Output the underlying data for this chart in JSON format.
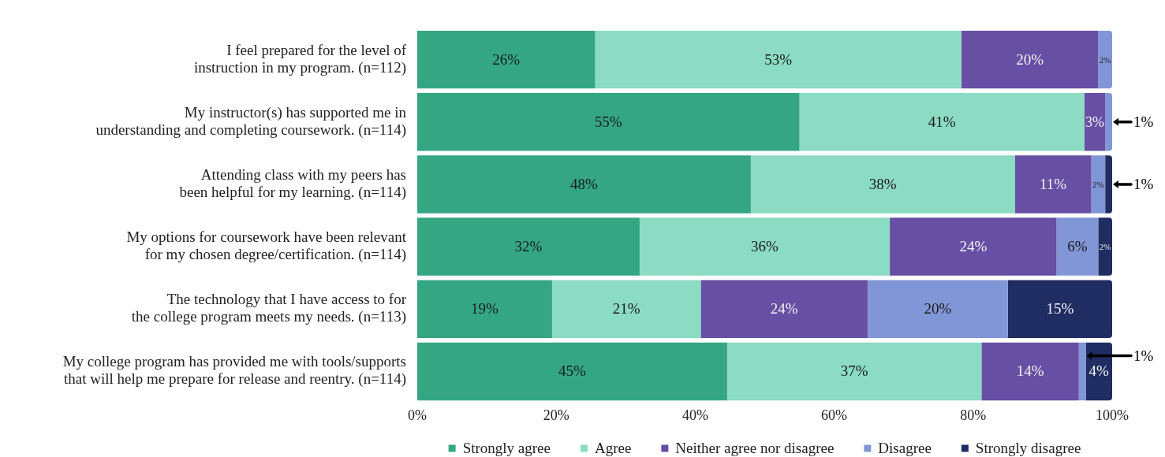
{
  "chart_data": {
    "type": "bar",
    "orientation": "horizontal",
    "stacked": true,
    "categories": [
      "I feel prepared for the level of\ninstruction in my program. (n=112)",
      "My instructor(s) has supported me in\nunderstanding and completing coursework. (n=114)",
      "Attending class with my peers has\nbeen helpful for my learning. (n=114)",
      "My options for coursework have been relevant\nfor my chosen degree/certification. (n=114)",
      "The technology that I have access to for\nthe college program meets my needs. (n=113)",
      "My college program has provided me with tools/supports\nthat will help me prepare for release and reentry. (n=114)"
    ],
    "series": [
      {
        "name": "Strongly agree",
        "color": "#34a782",
        "values": [
          25.6,
          55,
          48,
          32,
          19.4,
          44.6
        ],
        "value_labels": [
          "26%",
          "55%",
          "48%",
          "32%",
          "19%",
          "45%"
        ]
      },
      {
        "name": "Agree",
        "color": "#8cdbc3",
        "values": [
          52.7,
          41,
          38,
          36,
          21.4,
          36.6
        ],
        "value_labels": [
          "53%",
          "41%",
          "38%",
          "36%",
          "21%",
          "37%"
        ]
      },
      {
        "name": "Neither agree nor disagree",
        "color": "#674fa3",
        "values": [
          19.7,
          3,
          11,
          24,
          24,
          14
        ],
        "value_labels": [
          "20%",
          "3%",
          "11%",
          "24%",
          "24%",
          "14%"
        ]
      },
      {
        "name": "Disagree",
        "color": "#8096d6",
        "values": [
          2,
          1,
          2,
          6,
          20.2,
          1
        ],
        "value_labels": [
          "2%",
          "1%",
          "2%",
          "6%",
          "20%",
          "1%"
        ]
      },
      {
        "name": "Strongly disagree",
        "color": "#202d62",
        "values": [
          0,
          0,
          1,
          2,
          15,
          3.8
        ],
        "value_labels": [
          null,
          null,
          "1%",
          "2%",
          "15%",
          "4%"
        ]
      }
    ],
    "xlim": [
      0,
      100
    ],
    "xticks": [
      {
        "value": 0,
        "label": "0%"
      },
      {
        "value": 20,
        "label": "20%"
      },
      {
        "value": 40,
        "label": "40%"
      },
      {
        "value": 60,
        "label": "60%"
      },
      {
        "value": 80,
        "label": "80%"
      },
      {
        "value": 100,
        "label": "100%"
      }
    ],
    "legend": "bottom"
  }
}
